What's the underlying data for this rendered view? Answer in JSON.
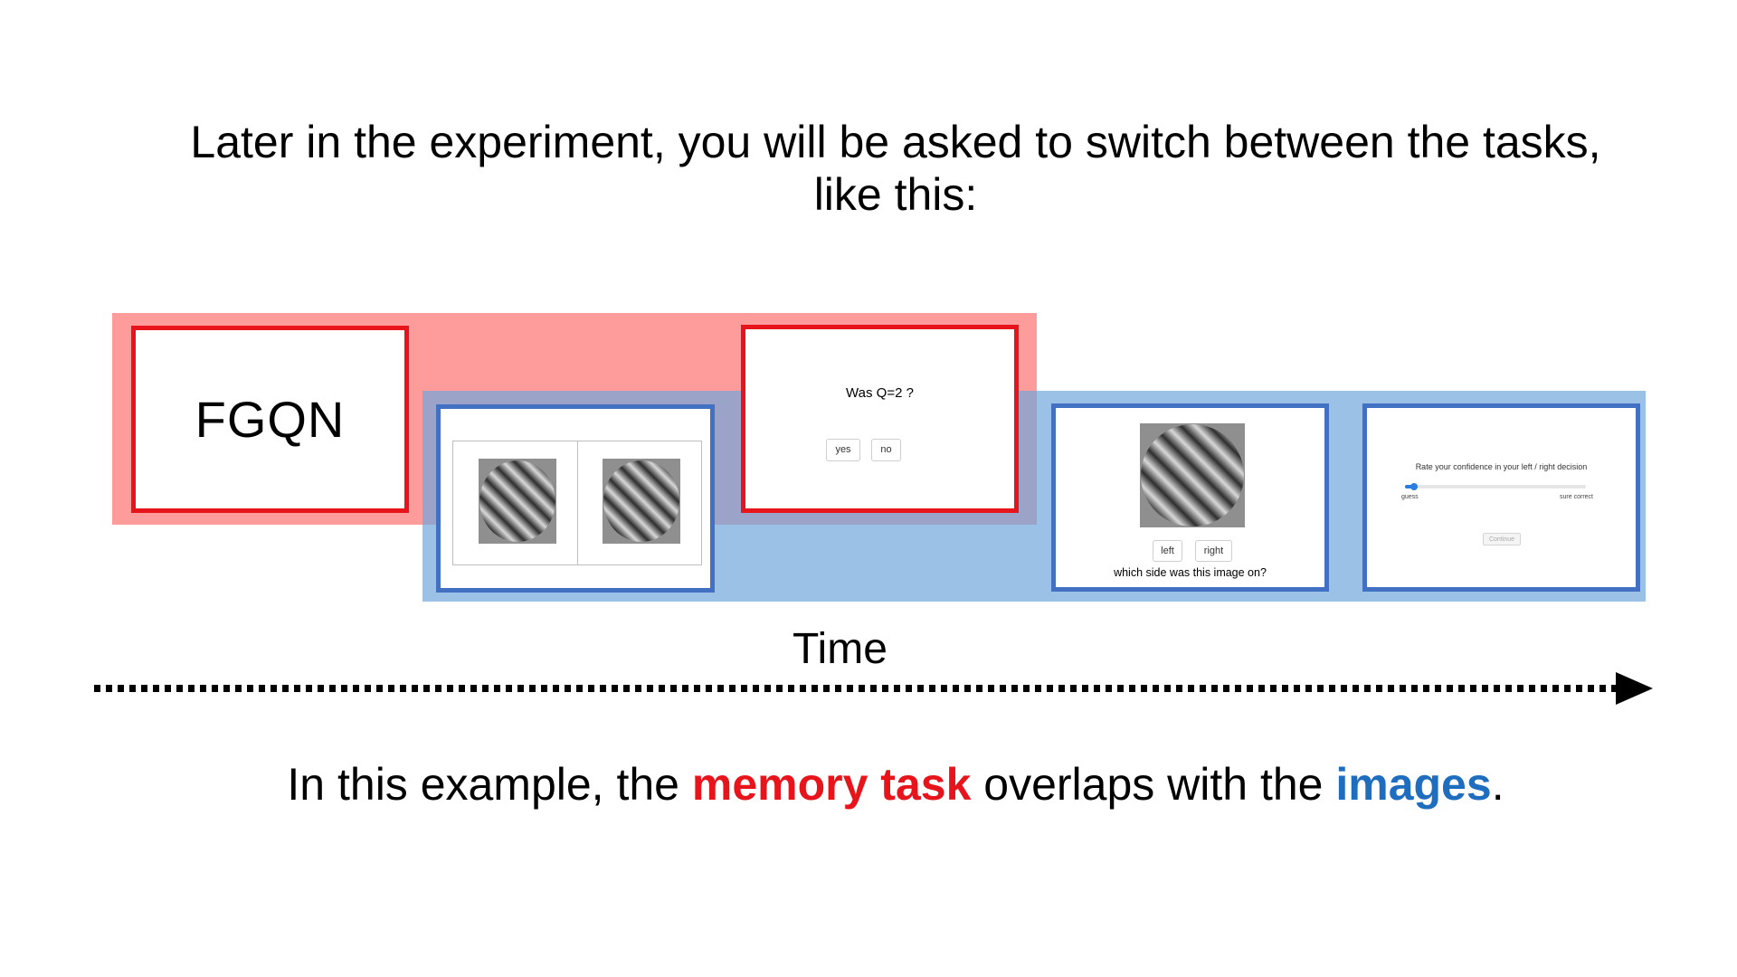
{
  "heading": {
    "line1": "Later in the experiment, you will be asked to switch between the tasks,",
    "line2": "like this:"
  },
  "memory_letters": "FGQN",
  "memory_probe": {
    "question": "Was Q=2 ?",
    "yes_label": "yes",
    "no_label": "no"
  },
  "image_probe": {
    "left_label": "left",
    "right_label": "right",
    "question": "which side was this image on?"
  },
  "confidence": {
    "prompt": "Rate your confidence in your left / right decision",
    "low_label": "guess",
    "high_label": "sure correct",
    "continue_label": "Continue",
    "slider_value": 0.05
  },
  "timeline": {
    "label": "Time"
  },
  "caption": {
    "prefix": "In this example, the ",
    "memory_term": "memory task",
    "middle": " overlaps with the ",
    "image_term": "images",
    "suffix": "."
  },
  "colors": {
    "memory_red": "#e8141b",
    "memory_band": "#fe9b9b",
    "image_blue": "#4270c2",
    "image_band": "#9cc4e8",
    "image_text_blue": "#1f6dbf"
  }
}
